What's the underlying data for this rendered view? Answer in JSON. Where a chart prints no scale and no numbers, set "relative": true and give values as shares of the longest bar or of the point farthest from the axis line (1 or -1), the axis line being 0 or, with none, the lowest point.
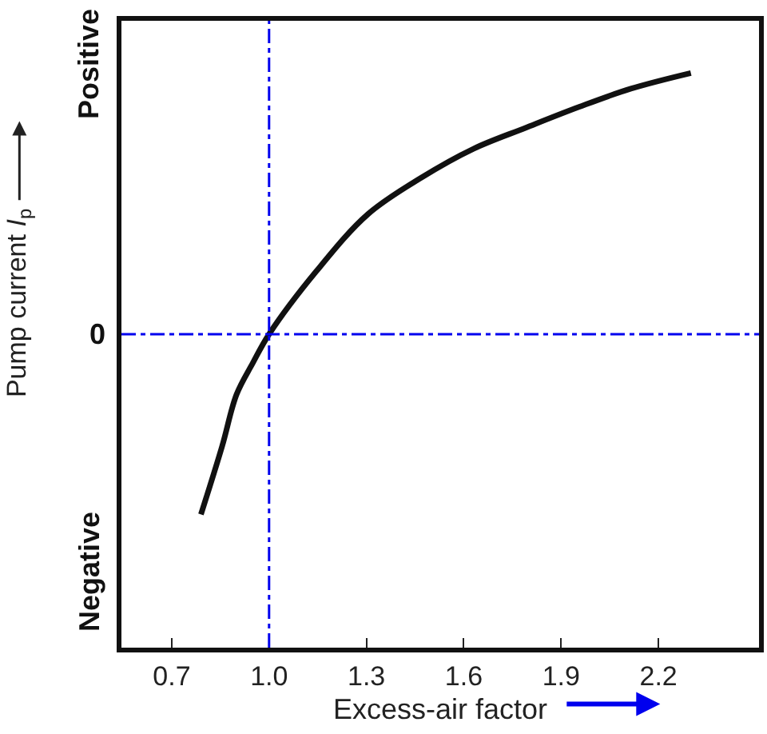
{
  "chart_data": {
    "type": "line",
    "relative": true,
    "xlabel": "Excess-air factor",
    "ylabel": "Pump current I$_{p}$",
    "x": [
      0.79,
      0.855,
      0.9,
      0.95,
      1.0,
      1.145,
      1.305,
      1.47,
      1.63,
      1.79,
      1.955,
      2.115,
      2.3
    ],
    "series": [
      {
        "color": "#111111",
        "values": [
          -0.69,
          -0.43,
          -0.23,
          -0.11,
          0,
          0.24,
          0.46,
          0.6,
          0.71,
          0.79,
          0.87,
          0.94,
          1.0
        ]
      }
    ],
    "xlim": [
      0.545,
      2.51
    ],
    "xticks": [
      {
        "value": 0.7,
        "label": "0.7"
      },
      {
        "value": 1.0,
        "label": "1.0"
      },
      {
        "value": 1.3,
        "label": "1.3"
      },
      {
        "value": 1.6,
        "label": "1.6"
      },
      {
        "value": 1.9,
        "label": "1.9"
      },
      {
        "value": 2.2,
        "label": "2.2"
      }
    ],
    "ref_lines": [
      {
        "axis": "x",
        "value": 1.0,
        "color": "#0000ee",
        "line_style": "dashdot"
      },
      {
        "axis": "y",
        "value": 0,
        "label": "0",
        "color": "#0000ee",
        "line_style": "dashdot"
      }
    ],
    "annotations": [
      "Positive",
      "Negative"
    ],
    "marker": "none",
    "line_style": "solid"
  }
}
